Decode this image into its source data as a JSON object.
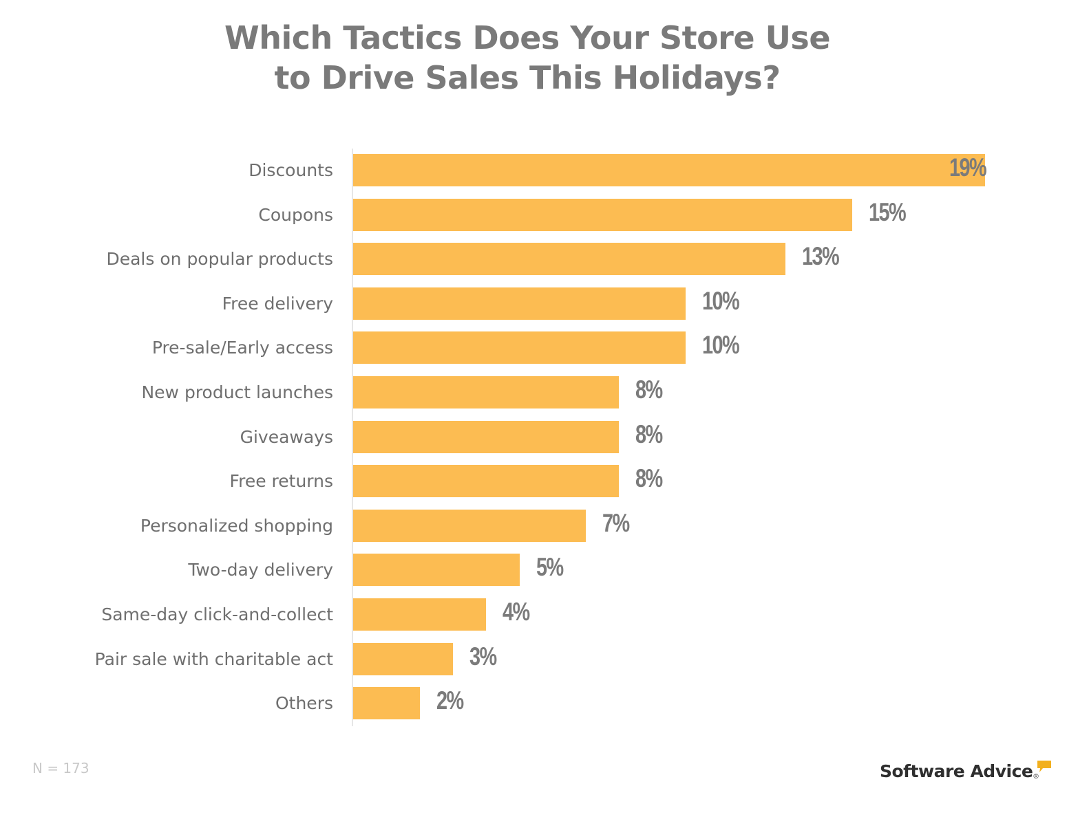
{
  "title": {
    "line1": "Which Tactics Does Your Store Use",
    "line2": "to Drive Sales This Holidays?"
  },
  "footnote": "N = 173",
  "brand": {
    "name": "Software Advice",
    "registered_mark": "®",
    "icon": "speech-bubble-icon",
    "accent_color": "#f2b01e"
  },
  "colors": {
    "bar": "#fcbc52",
    "title": "#7a7a7a",
    "label": "#6f6f6f",
    "value": "#7b7b7b",
    "axis": "#e6e6e6"
  },
  "bars": [
    {
      "label": "Discounts",
      "value_label": "19%"
    },
    {
      "label": "Coupons",
      "value_label": "15%"
    },
    {
      "label": "Deals on popular products",
      "value_label": "13%"
    },
    {
      "label": "Free delivery",
      "value_label": "10%"
    },
    {
      "label": "Pre-sale/Early access",
      "value_label": "10%"
    },
    {
      "label": "New product launches",
      "value_label": "8%"
    },
    {
      "label": "Giveaways",
      "value_label": "8%"
    },
    {
      "label": "Free returns",
      "value_label": "8%"
    },
    {
      "label": "Personalized shopping",
      "value_label": "7%"
    },
    {
      "label": "Two-day delivery",
      "value_label": "5%"
    },
    {
      "label": "Same-day click-and-collect",
      "value_label": "4%"
    },
    {
      "label": "Pair sale with charitable act",
      "value_label": "3%"
    },
    {
      "label": "Others",
      "value_label": "2%"
    }
  ],
  "chart_data": {
    "type": "bar",
    "orientation": "horizontal",
    "title": "Which Tactics Does Your Store Use to Drive Sales This Holidays?",
    "categories": [
      "Discounts",
      "Coupons",
      "Deals on popular products",
      "Free delivery",
      "Pre-sale/Early access",
      "New product launches",
      "Giveaways",
      "Free returns",
      "Personalized shopping",
      "Two-day delivery",
      "Same-day click-and-collect",
      "Pair sale with charitable act",
      "Others"
    ],
    "values": [
      19,
      15,
      13,
      10,
      10,
      8,
      8,
      8,
      7,
      5,
      4,
      3,
      2
    ],
    "unit": "%",
    "xlabel": "",
    "ylabel": "",
    "xlim": [
      0,
      19
    ],
    "grid": false,
    "legend": null,
    "data_labels": true,
    "annotations": [
      "N = 173"
    ],
    "source": "Software Advice"
  }
}
